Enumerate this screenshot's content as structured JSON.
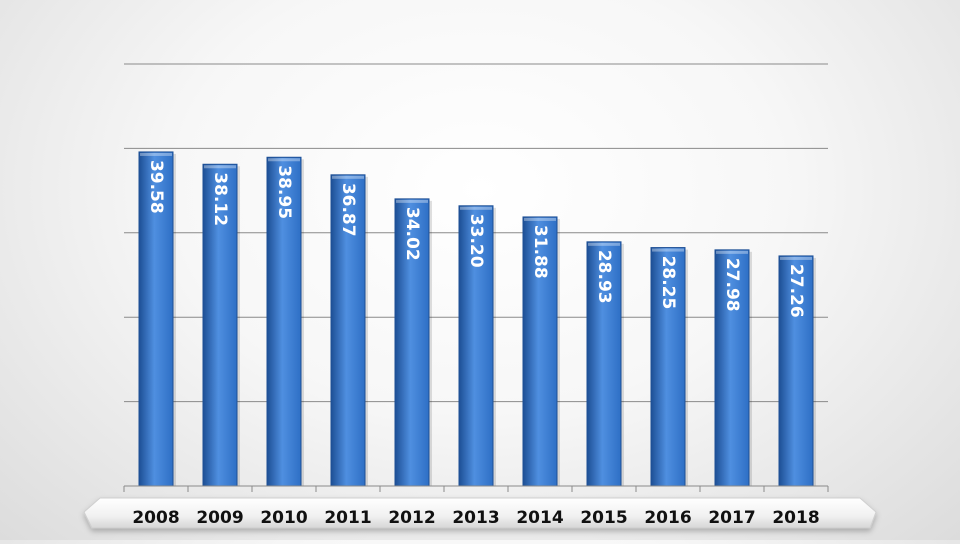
{
  "chart_data": {
    "type": "bar",
    "title": "",
    "xlabel": "",
    "ylabel": "",
    "categories": [
      "2008",
      "2009",
      "2010",
      "2011",
      "2012",
      "2013",
      "2014",
      "2015",
      "2016",
      "2017",
      "2018"
    ],
    "values": [
      39.58,
      38.12,
      38.95,
      36.87,
      34.02,
      33.2,
      31.88,
      28.93,
      28.25,
      27.98,
      27.26
    ],
    "value_labels": [
      "39.58",
      "38.12",
      "38.95",
      "36.87",
      "34.02",
      "33.20",
      "31.88",
      "28.93",
      "28.25",
      "27.98",
      "27.26"
    ],
    "ylim": [
      0,
      50
    ],
    "gridlines": [
      10,
      20,
      30,
      40,
      50
    ],
    "grid": true,
    "y_tick_labels_shown": false,
    "data_label_orientation": "vertical",
    "legend": "none",
    "bar_color": "#2e6fc5",
    "bar_color_light": "#4f8fe0",
    "bar_color_dark": "#1d4f95",
    "gridline_color": "#8a8a8a",
    "base_platform_color": "#f2f2f2"
  }
}
